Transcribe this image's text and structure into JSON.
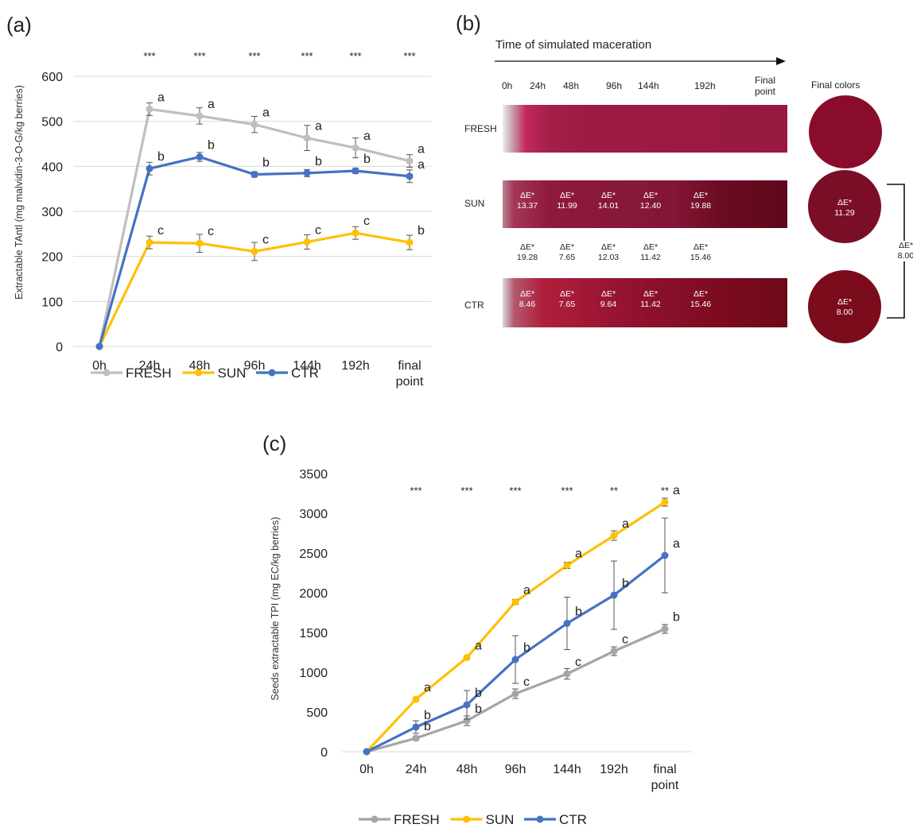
{
  "panel_a": {
    "label": "(a)",
    "chart_data": {
      "type": "line",
      "categories": [
        "0h",
        "24h",
        "48h",
        "96h",
        "144h",
        "192h",
        "final point"
      ],
      "ylabel": "Extractable TAntl (mg malvidin-3-O-G/kg berries)",
      "ylim": [
        0,
        600
      ],
      "yticks": [
        0,
        100,
        200,
        300,
        400,
        500,
        600
      ],
      "grid": true,
      "legend": "bottom",
      "significance": [
        "***",
        "***",
        "***",
        "***",
        "***",
        "***"
      ],
      "series": [
        {
          "name": "FRESH",
          "color": "#bfbfbf",
          "values": [
            0,
            527,
            512,
            493,
            463,
            441,
            412
          ],
          "errors": [
            0,
            14,
            18,
            18,
            28,
            22,
            14
          ],
          "letters": [
            "",
            "a",
            "a",
            "a",
            "a",
            "a",
            "a"
          ]
        },
        {
          "name": "SUN",
          "color": "#ffc000",
          "values": [
            0,
            231,
            229,
            211,
            232,
            252,
            231
          ],
          "errors": [
            0,
            14,
            20,
            20,
            16,
            14,
            16
          ],
          "letters": [
            "",
            "c",
            "c",
            "c",
            "c",
            "c",
            "b"
          ]
        },
        {
          "name": "CTR",
          "color": "#4472c4",
          "values": [
            0,
            395,
            421,
            382,
            385,
            390,
            378
          ],
          "errors": [
            0,
            14,
            10,
            6,
            8,
            6,
            14
          ],
          "letters": [
            "",
            "b",
            "b",
            "b",
            "b",
            "b",
            "a"
          ]
        }
      ]
    }
  },
  "panel_b": {
    "label": "(b)",
    "time_label": "Time of simulated maceration",
    "hours": [
      "0h",
      "24h",
      "48h",
      "96h",
      "144h",
      "192h"
    ],
    "final_point": "Final point",
    "final_colors": "Final colors",
    "rows": [
      {
        "name": "FRESH",
        "values": [],
        "final": "",
        "color": "#8a0c2c"
      },
      {
        "name": "SUN",
        "values": [
          "13.37",
          "11.99",
          "14.01",
          "12.40",
          "19.88"
        ],
        "final": "11.29",
        "color": "#7a0e27"
      },
      {
        "name": "CTR",
        "values": [
          "8.46",
          "7.65",
          "9.64",
          "11.42",
          "15.46"
        ],
        "final": "8.00",
        "color": "#7a0c1c"
      }
    ],
    "between_values": [
      "19.28",
      "7.65",
      "12.03",
      "11.42",
      "15.46"
    ],
    "delta_label": "ΔE*",
    "bracket_value": "8.00"
  },
  "panel_c": {
    "label": "(c)",
    "chart_data": {
      "type": "line",
      "categories": [
        "0h",
        "24h",
        "48h",
        "96h",
        "144h",
        "192h",
        "final point"
      ],
      "ylabel": "Seeds extractable TPI (mg EC/kg berries)",
      "ylim": [
        0,
        3500
      ],
      "yticks": [
        0,
        500,
        1000,
        1500,
        2000,
        2500,
        3000,
        3500
      ],
      "grid": false,
      "legend": "bottom",
      "significance": [
        "***",
        "***",
        "***",
        "***",
        "**",
        "**"
      ],
      "series": [
        {
          "name": "FRESH",
          "color": "#a5a5a5",
          "values": [
            0,
            170,
            390,
            730,
            980,
            1265,
            1545
          ],
          "errors": [
            0,
            25,
            60,
            60,
            65,
            55,
            55
          ],
          "letters": [
            "",
            "b",
            "b",
            "c",
            "c",
            "c",
            "b"
          ]
        },
        {
          "name": "SUN",
          "color": "#ffc000",
          "values": [
            0,
            660,
            1185,
            1885,
            2345,
            2720,
            3140
          ],
          "errors": [
            0,
            20,
            20,
            30,
            40,
            60,
            50
          ],
          "letters": [
            "",
            "a",
            "a",
            "a",
            "a",
            "a",
            "a"
          ]
        },
        {
          "name": "CTR",
          "color": "#4472c4",
          "values": [
            0,
            310,
            590,
            1160,
            1615,
            1970,
            2470
          ],
          "errors": [
            0,
            80,
            180,
            300,
            330,
            430,
            470
          ],
          "letters": [
            "",
            "b",
            "b",
            "b",
            "b",
            "b",
            "a"
          ]
        }
      ]
    }
  }
}
